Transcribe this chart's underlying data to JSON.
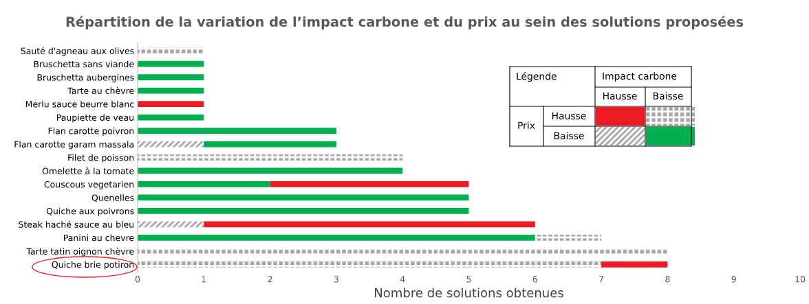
{
  "chart_data": {
    "type": "bar",
    "orientation": "horizontal",
    "stacked": true,
    "title": "Répartition de la variation de l’impact carbone et du prix au sein des solutions proposées",
    "xlabel": "Nombre de solutions obtenues",
    "categories": [
      "Sauté d'agneau aux olives",
      "Bruschetta sans viande",
      "Bruschetta aubergines",
      "Tarte au chèvre",
      "Merlu sauce beurre blanc",
      "Paupiette de veau",
      "Flan carotte poivron",
      "Flan carotte garam massala",
      "Filet de poisson",
      "Omelette à la tomate",
      "Couscous vegetarien",
      "Quenelles",
      "Quiche aux poivrons",
      "Steak haché sauce au bleu",
      "Panini au chevre",
      "Tarte tatin oignon chèvre",
      "Quiche brie potiron"
    ],
    "series": [
      {
        "color": "#a6a6a6",
        "values": [
          0,
          0,
          0,
          0,
          0,
          0,
          0,
          1,
          0,
          0,
          0,
          0,
          0,
          1,
          0,
          0,
          0
        ]
      },
      {
        "color": "#00b050",
        "values": [
          0,
          1,
          1,
          1,
          0,
          1,
          3,
          2,
          0,
          4,
          2,
          5,
          5,
          0,
          6,
          0,
          0
        ]
      },
      {
        "color": "#a6a6a6",
        "values": [
          1,
          0,
          0,
          0,
          0,
          0,
          0,
          0,
          4,
          0,
          0,
          0,
          0,
          0,
          1,
          8,
          7
        ]
      },
      {
        "color": "#ed1c24",
        "values": [
          0,
          0,
          0,
          0,
          1,
          0,
          0,
          0,
          0,
          0,
          3,
          0,
          0,
          5,
          0,
          0,
          1
        ]
      }
    ],
    "xlim": [
      0,
      10
    ],
    "xticks": [
      0,
      1,
      2,
      3,
      4,
      5,
      6,
      7,
      8,
      9,
      10
    ],
    "grid": false,
    "legend": false,
    "annotations": [
      "Légende",
      "Impact carbone",
      "Hausse",
      "Baisse",
      "Prix",
      "Hausse",
      "Baisse"
    ]
  }
}
